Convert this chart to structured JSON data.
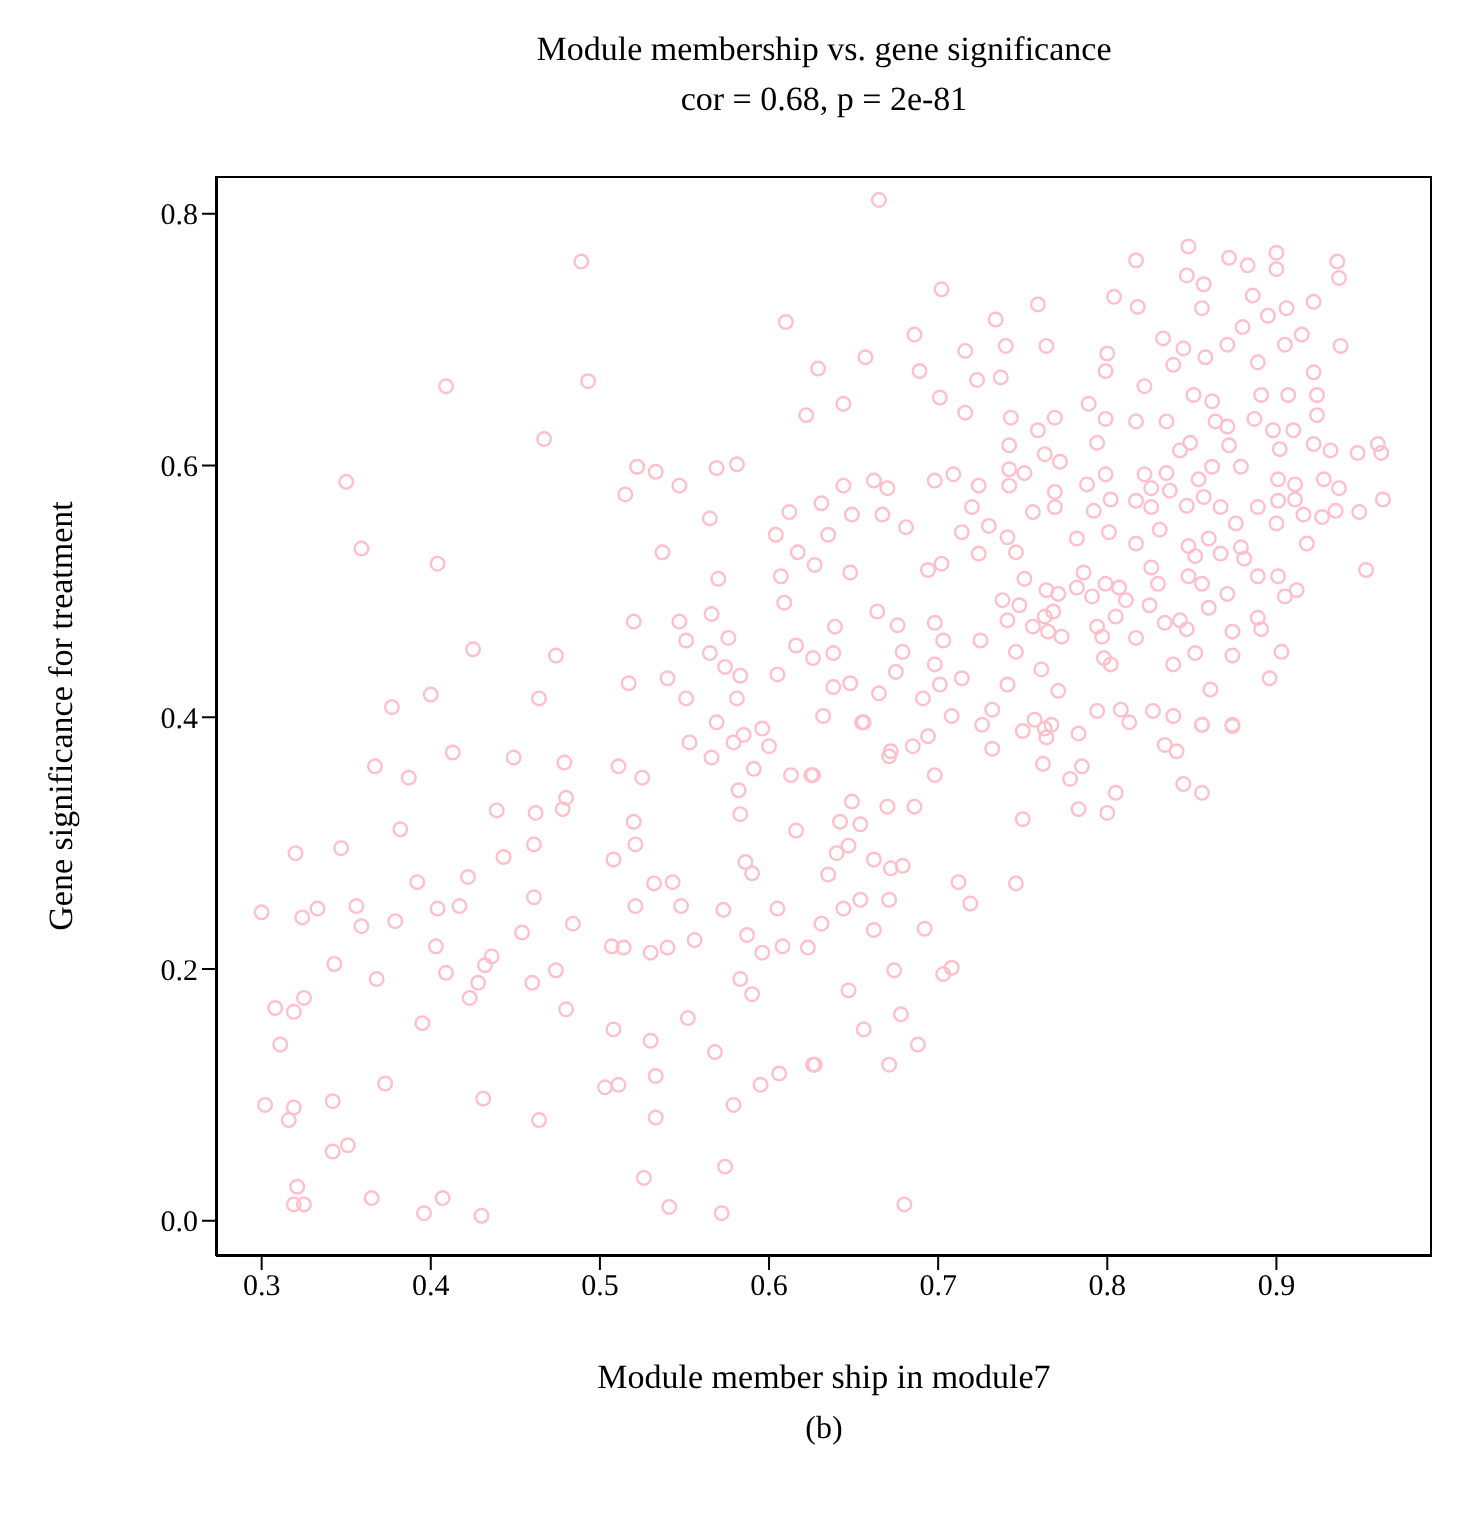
{
  "chart_data": {
    "type": "scatter",
    "title": "Module membership vs. gene significance",
    "subtitle": "cor = 0.68, p = 2e-81",
    "xlabel": "Module member ship in module7",
    "ylabel": "Gene significance for treatment",
    "annotations": [
      "(b)"
    ],
    "color": "#ffc0cb",
    "marker": "circle",
    "xlim": [
      0.273,
      0.992
    ],
    "ylim": [
      -0.028,
      0.83
    ],
    "xticks": [
      0.3,
      0.4,
      0.5,
      0.6,
      0.7,
      0.8,
      0.9
    ],
    "yticks": [
      {
        "value": 0,
        "label": "0.0"
      },
      0.2,
      0.4,
      0.6,
      0.8
    ],
    "x": [
      0.489,
      0.61,
      0.409,
      0.493,
      0.467,
      0.35,
      0.359,
      0.404,
      0.515,
      0.522,
      0.533,
      0.547,
      0.569,
      0.581,
      0.622,
      0.612,
      0.604,
      0.565,
      0.537,
      0.57,
      0.617,
      0.607,
      0.609,
      0.52,
      0.547,
      0.551,
      0.566,
      0.576,
      0.565,
      0.616,
      0.425,
      0.474,
      0.4,
      0.377,
      0.464,
      0.517,
      0.54,
      0.551,
      0.574,
      0.583,
      0.581,
      0.605,
      0.569,
      0.665,
      0.702,
      0.686,
      0.657,
      0.629,
      0.644,
      0.689,
      0.701,
      0.716,
      0.734,
      0.759,
      0.74,
      0.764,
      0.723,
      0.737,
      0.716,
      0.743,
      0.769,
      0.759,
      0.804,
      0.818,
      0.817,
      0.848,
      0.847,
      0.872,
      0.883,
      0.9,
      0.9,
      0.936,
      0.937,
      0.857,
      0.856,
      0.886,
      0.906,
      0.922,
      0.88,
      0.895,
      0.833,
      0.845,
      0.858,
      0.871,
      0.889,
      0.905,
      0.915,
      0.938,
      0.8,
      0.799,
      0.839,
      0.789,
      0.822,
      0.851,
      0.862,
      0.891,
      0.907,
      0.922,
      0.924,
      0.924,
      0.799,
      0.817,
      0.835,
      0.864,
      0.887,
      0.898,
      0.91,
      0.871,
      0.742,
      0.763,
      0.772,
      0.794,
      0.849,
      0.843,
      0.872,
      0.902,
      0.922,
      0.932,
      0.948,
      0.96,
      0.962,
      0.742,
      0.751,
      0.799,
      0.822,
      0.835,
      0.854,
      0.862,
      0.879,
      0.901,
      0.911,
      0.928,
      0.937,
      0.698,
      0.709,
      0.662,
      0.67,
      0.644,
      0.724,
      0.742,
      0.788,
      0.826,
      0.837,
      0.631,
      0.649,
      0.667,
      0.681,
      0.72,
      0.714,
      0.73,
      0.635,
      0.627,
      0.648,
      0.694,
      0.702,
      0.724,
      0.741,
      0.746,
      0.756,
      0.769,
      0.769,
      0.782,
      0.792,
      0.802,
      0.817,
      0.826,
      0.831,
      0.817,
      0.801,
      0.847,
      0.857,
      0.867,
      0.876,
      0.889,
      0.901,
      0.911,
      0.916,
      0.927,
      0.935,
      0.949,
      0.963,
      0.848,
      0.86,
      0.879,
      0.9,
      0.918,
      0.953,
      0.852,
      0.867,
      0.881,
      0.856,
      0.848,
      0.871,
      0.889,
      0.901,
      0.912,
      0.905,
      0.86,
      0.826,
      0.83,
      0.825,
      0.807,
      0.799,
      0.786,
      0.782,
      0.791,
      0.811,
      0.805,
      0.794,
      0.797,
      0.817,
      0.834,
      0.843,
      0.847,
      0.874,
      0.889,
      0.891,
      0.852,
      0.874,
      0.903,
      0.896,
      0.861,
      0.839,
      0.798,
      0.802,
      0.765,
      0.773,
      0.768,
      0.763,
      0.756,
      0.746,
      0.761,
      0.741,
      0.738,
      0.748,
      0.751,
      0.764,
      0.771,
      0.725,
      0.703,
      0.698,
      0.679,
      0.676,
      0.664,
      0.639,
      0.638,
      0.626,
      0.675,
      0.698,
      0.701,
      0.714,
      0.741,
      0.771,
      0.794,
      0.808,
      0.827,
      0.839,
      0.638,
      0.648,
      0.665,
      0.691,
      0.708,
      0.732,
      0.632,
      0.655,
      0.757,
      0.856,
      0.874,
      0.553,
      0.566,
      0.579,
      0.585,
      0.596,
      0.6,
      0.591,
      0.613,
      0.625,
      0.367,
      0.387,
      0.413,
      0.449,
      0.479,
      0.511,
      0.525,
      0.582,
      0.583,
      0.616,
      0.48,
      0.478,
      0.462,
      0.439,
      0.382,
      0.32,
      0.347,
      0.461,
      0.443,
      0.52,
      0.521,
      0.508,
      0.586,
      0.59,
      0.532,
      0.543,
      0.392,
      0.422,
      0.3,
      0.324,
      0.333,
      0.356,
      0.359,
      0.379,
      0.404,
      0.417,
      0.461,
      0.454,
      0.484,
      0.521,
      0.548,
      0.573,
      0.605,
      0.587,
      0.507,
      0.514,
      0.53,
      0.54,
      0.556,
      0.596,
      0.608,
      0.623,
      0.403,
      0.436,
      0.432,
      0.428,
      0.423,
      0.409,
      0.343,
      0.368,
      0.46,
      0.474,
      0.48,
      0.395,
      0.308,
      0.319,
      0.325,
      0.311,
      0.583,
      0.59,
      0.508,
      0.53,
      0.552,
      0.568,
      0.595,
      0.606,
      0.626,
      0.503,
      0.511,
      0.533,
      0.533,
      0.579,
      0.373,
      0.431,
      0.464,
      0.302,
      0.319,
      0.316,
      0.342,
      0.342,
      0.351,
      0.321,
      0.319,
      0.325,
      0.365,
      0.396,
      0.407,
      0.43,
      0.526,
      0.574,
      0.541,
      0.572,
      0.656,
      0.726,
      0.75,
      0.763,
      0.767,
      0.764,
      0.783,
      0.813,
      0.834,
      0.841,
      0.856,
      0.874,
      0.732,
      0.762,
      0.785,
      0.778,
      0.805,
      0.845,
      0.856,
      0.783,
      0.8,
      0.75,
      0.671,
      0.672,
      0.685,
      0.694,
      0.698,
      0.626,
      0.649,
      0.67,
      0.686,
      0.642,
      0.654,
      0.647,
      0.64,
      0.662,
      0.672,
      0.679,
      0.635,
      0.712,
      0.746,
      0.719,
      0.654,
      0.671,
      0.644,
      0.631,
      0.662,
      0.692,
      0.674,
      0.703,
      0.708,
      0.647,
      0.678,
      0.656,
      0.688,
      0.627,
      0.671,
      0.68
    ],
    "values": [
      0.762,
      0.714,
      0.663,
      0.667,
      0.621,
      0.587,
      0.534,
      0.522,
      0.577,
      0.599,
      0.595,
      0.584,
      0.598,
      0.601,
      0.64,
      0.563,
      0.545,
      0.558,
      0.531,
      0.51,
      0.531,
      0.512,
      0.491,
      0.476,
      0.476,
      0.461,
      0.482,
      0.463,
      0.451,
      0.457,
      0.454,
      0.449,
      0.418,
      0.408,
      0.415,
      0.427,
      0.431,
      0.415,
      0.44,
      0.433,
      0.415,
      0.434,
      0.396,
      0.811,
      0.74,
      0.704,
      0.686,
      0.677,
      0.649,
      0.675,
      0.654,
      0.691,
      0.716,
      0.728,
      0.695,
      0.695,
      0.668,
      0.67,
      0.642,
      0.638,
      0.638,
      0.628,
      0.734,
      0.726,
      0.763,
      0.774,
      0.751,
      0.765,
      0.759,
      0.769,
      0.756,
      0.762,
      0.749,
      0.744,
      0.725,
      0.735,
      0.725,
      0.73,
      0.71,
      0.719,
      0.701,
      0.693,
      0.686,
      0.696,
      0.682,
      0.696,
      0.704,
      0.695,
      0.689,
      0.675,
      0.68,
      0.649,
      0.663,
      0.656,
      0.651,
      0.656,
      0.656,
      0.674,
      0.656,
      0.64,
      0.637,
      0.635,
      0.635,
      0.635,
      0.637,
      0.628,
      0.628,
      0.631,
      0.616,
      0.609,
      0.603,
      0.618,
      0.618,
      0.612,
      0.616,
      0.613,
      0.617,
      0.612,
      0.61,
      0.617,
      0.61,
      0.597,
      0.594,
      0.593,
      0.593,
      0.594,
      0.589,
      0.599,
      0.599,
      0.589,
      0.585,
      0.589,
      0.582,
      0.588,
      0.593,
      0.588,
      0.582,
      0.584,
      0.584,
      0.584,
      0.585,
      0.582,
      0.58,
      0.57,
      0.561,
      0.561,
      0.551,
      0.567,
      0.547,
      0.552,
      0.545,
      0.521,
      0.515,
      0.517,
      0.522,
      0.53,
      0.543,
      0.531,
      0.563,
      0.579,
      0.567,
      0.542,
      0.564,
      0.573,
      0.572,
      0.567,
      0.549,
      0.538,
      0.547,
      0.568,
      0.575,
      0.567,
      0.554,
      0.567,
      0.572,
      0.573,
      0.561,
      0.559,
      0.564,
      0.563,
      0.573,
      0.536,
      0.542,
      0.535,
      0.554,
      0.538,
      0.517,
      0.528,
      0.53,
      0.526,
      0.506,
      0.512,
      0.498,
      0.512,
      0.512,
      0.501,
      0.496,
      0.487,
      0.519,
      0.506,
      0.489,
      0.503,
      0.506,
      0.515,
      0.503,
      0.496,
      0.493,
      0.48,
      0.472,
      0.464,
      0.463,
      0.475,
      0.477,
      0.47,
      0.468,
      0.479,
      0.47,
      0.451,
      0.449,
      0.452,
      0.431,
      0.422,
      0.442,
      0.447,
      0.442,
      0.468,
      0.464,
      0.484,
      0.48,
      0.472,
      0.452,
      0.438,
      0.477,
      0.493,
      0.489,
      0.51,
      0.501,
      0.498,
      0.461,
      0.461,
      0.475,
      0.452,
      0.473,
      0.484,
      0.472,
      0.451,
      0.447,
      0.436,
      0.442,
      0.426,
      0.431,
      0.426,
      0.421,
      0.405,
      0.406,
      0.405,
      0.401,
      0.424,
      0.427,
      0.419,
      0.415,
      0.401,
      0.406,
      0.401,
      0.396,
      0.398,
      0.394,
      0.394,
      0.38,
      0.368,
      0.38,
      0.386,
      0.391,
      0.377,
      0.359,
      0.354,
      0.354,
      0.361,
      0.352,
      0.372,
      0.368,
      0.364,
      0.361,
      0.352,
      0.342,
      0.323,
      0.31,
      0.336,
      0.327,
      0.324,
      0.326,
      0.311,
      0.292,
      0.296,
      0.299,
      0.289,
      0.317,
      0.299,
      0.287,
      0.285,
      0.276,
      0.268,
      0.269,
      0.269,
      0.273,
      0.245,
      0.241,
      0.248,
      0.25,
      0.234,
      0.238,
      0.248,
      0.25,
      0.257,
      0.229,
      0.236,
      0.25,
      0.25,
      0.247,
      0.248,
      0.227,
      0.218,
      0.217,
      0.213,
      0.217,
      0.223,
      0.213,
      0.218,
      0.217,
      0.218,
      0.21,
      0.203,
      0.189,
      0.177,
      0.197,
      0.204,
      0.192,
      0.189,
      0.199,
      0.168,
      0.157,
      0.169,
      0.166,
      0.177,
      0.14,
      0.192,
      0.18,
      0.152,
      0.143,
      0.161,
      0.134,
      0.108,
      0.117,
      0.124,
      0.106,
      0.108,
      0.115,
      0.082,
      0.092,
      0.109,
      0.097,
      0.08,
      0.092,
      0.09,
      0.08,
      0.095,
      0.055,
      0.06,
      0.027,
      0.013,
      0.013,
      0.018,
      0.006,
      0.018,
      0.004,
      0.034,
      0.043,
      0.011,
      0.006,
      0.396,
      0.394,
      0.389,
      0.391,
      0.394,
      0.384,
      0.387,
      0.396,
      0.378,
      0.373,
      0.394,
      0.393,
      0.375,
      0.363,
      0.361,
      0.351,
      0.34,
      0.347,
      0.34,
      0.327,
      0.324,
      0.319,
      0.369,
      0.373,
      0.377,
      0.385,
      0.354,
      0.354,
      0.333,
      0.329,
      0.329,
      0.317,
      0.315,
      0.298,
      0.292,
      0.287,
      0.28,
      0.282,
      0.275,
      0.269,
      0.268,
      0.252,
      0.255,
      0.255,
      0.248,
      0.236,
      0.231,
      0.232,
      0.199,
      0.196,
      0.201,
      0.183,
      0.164,
      0.152,
      0.14,
      0.124,
      0.124,
      0.013
    ]
  }
}
